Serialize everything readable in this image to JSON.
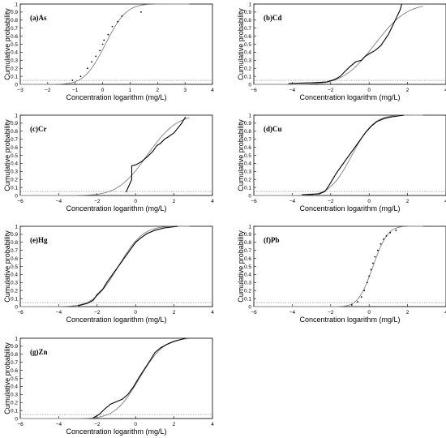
{
  "chart_data": [
    {
      "type": "line",
      "panel_label": "(a)As",
      "xlabel": "Concentration logarithm (mg/L)",
      "ylabel": "Cumulative probability",
      "xlim": [
        -3,
        4
      ],
      "ylim": [
        0,
        1
      ],
      "xticks": [
        -3,
        -2,
        -1,
        0,
        1,
        2,
        3,
        4
      ],
      "yticks": [
        0,
        0.1,
        0.2,
        0.3,
        0.4,
        0.5,
        0.6,
        0.7,
        0.8,
        0.9,
        1
      ],
      "reference_y": 0.05,
      "fitted_curve": {
        "mean": 0.1,
        "sd": 0.6
      },
      "empirical": {
        "style": "points",
        "x": [
          -1.1,
          -0.8,
          -0.55,
          -0.4,
          -0.25,
          -0.1,
          0.0,
          0.05,
          0.2,
          0.35,
          0.55,
          0.7,
          1.4
        ],
        "y": [
          0.05,
          0.1,
          0.2,
          0.28,
          0.35,
          0.42,
          0.5,
          0.55,
          0.62,
          0.72,
          0.78,
          0.85,
          0.9
        ]
      }
    },
    {
      "type": "line",
      "panel_label": "(b)Cd",
      "xlabel": "Concentration logarithm (mg/L)",
      "ylabel": "Cumulative probability",
      "xlim": [
        -6,
        4
      ],
      "ylim": [
        0,
        1
      ],
      "xticks": [
        -6,
        -4,
        -2,
        0,
        2,
        4
      ],
      "yticks": [
        0,
        0.1,
        0.2,
        0.3,
        0.4,
        0.5,
        0.6,
        0.7,
        0.8,
        0.9,
        1
      ],
      "reference_y": 0.05,
      "fitted_curve": {
        "mean": 0.3,
        "sd": 1.3
      },
      "empirical": {
        "style": "line",
        "x": [
          -4.2,
          -3.0,
          -2.2,
          -1.8,
          -1.5,
          -1.3,
          -1.0,
          -0.7,
          -0.4,
          -0.2,
          0.0,
          0.3,
          0.6,
          0.8,
          1.0,
          1.2,
          1.4,
          1.6,
          1.7
        ],
        "y": [
          0.01,
          0.02,
          0.03,
          0.06,
          0.1,
          0.15,
          0.22,
          0.28,
          0.3,
          0.35,
          0.38,
          0.42,
          0.48,
          0.55,
          0.62,
          0.72,
          0.82,
          0.92,
          1.0
        ]
      }
    },
    {
      "type": "line",
      "panel_label": "(c)Cr",
      "xlabel": "Concentration logarithm (mg/L)",
      "ylabel": "Cumulative probability",
      "xlim": [
        -6,
        4
      ],
      "ylim": [
        0,
        1
      ],
      "xticks": [
        -6,
        -4,
        -2,
        0,
        2,
        4
      ],
      "yticks": [
        0,
        0.1,
        0.2,
        0.3,
        0.4,
        0.5,
        0.6,
        0.7,
        0.8,
        0.9,
        1
      ],
      "reference_y": 0.05,
      "fitted_curve": {
        "mean": 0.6,
        "sd": 1.2
      },
      "empirical": {
        "style": "line",
        "x": [
          -0.5,
          -0.2,
          -0.2,
          0.0,
          0.3,
          0.6,
          0.9,
          1.1,
          1.3,
          1.5,
          1.7,
          2.0,
          2.2,
          2.4,
          2.6
        ],
        "y": [
          0.04,
          0.2,
          0.37,
          0.38,
          0.42,
          0.48,
          0.55,
          0.62,
          0.65,
          0.7,
          0.73,
          0.78,
          0.84,
          0.9,
          0.98
        ]
      }
    },
    {
      "type": "line",
      "panel_label": "(d)Cu",
      "xlabel": "Concentration logarithm (mg/L)",
      "ylabel": "Cumulative probability",
      "xlim": [
        -6,
        4
      ],
      "ylim": [
        0,
        1
      ],
      "xticks": [
        -6,
        -4,
        -2,
        0,
        2,
        4
      ],
      "yticks": [
        0,
        0.1,
        0.2,
        0.3,
        0.4,
        0.5,
        0.6,
        0.7,
        0.8,
        0.9,
        1
      ],
      "reference_y": 0.05,
      "fitted_curve": {
        "mean": -0.9,
        "sd": 0.9
      },
      "empirical": {
        "style": "line",
        "x": [
          -3.5,
          -2.6,
          -2.3,
          -2.1,
          -1.9,
          -1.7,
          -1.4,
          -1.1,
          -0.8,
          -0.5,
          -0.2,
          0.1,
          0.4,
          0.8,
          1.2,
          1.8
        ],
        "y": [
          0.01,
          0.02,
          0.05,
          0.12,
          0.2,
          0.28,
          0.38,
          0.48,
          0.58,
          0.68,
          0.78,
          0.86,
          0.92,
          0.96,
          0.98,
          1.0
        ]
      }
    },
    {
      "type": "line",
      "panel_label": "(e)Hg",
      "xlabel": "Concentration logarithm (mg/L)",
      "ylabel": "Cumulative probability",
      "xlim": [
        -6,
        4
      ],
      "ylim": [
        0,
        1
      ],
      "xticks": [
        -6,
        -4,
        -2,
        0,
        2,
        4
      ],
      "yticks": [
        0,
        0.1,
        0.2,
        0.3,
        0.4,
        0.5,
        0.6,
        0.7,
        0.8,
        0.9,
        1
      ],
      "reference_y": 0.05,
      "fitted_curve": {
        "mean": -0.9,
        "sd": 1.0
      },
      "empirical": {
        "style": "line",
        "x": [
          -3.0,
          -2.5,
          -2.2,
          -2.0,
          -1.7,
          -1.5,
          -1.2,
          -0.9,
          -0.6,
          -0.3,
          0.0,
          0.3,
          0.6,
          1.0,
          1.5,
          2.2
        ],
        "y": [
          0.01,
          0.04,
          0.08,
          0.15,
          0.22,
          0.3,
          0.4,
          0.5,
          0.6,
          0.7,
          0.8,
          0.86,
          0.91,
          0.95,
          0.98,
          1.0
        ]
      }
    },
    {
      "type": "scatter",
      "panel_label": "(f)Pb",
      "xlabel": "Concentration logarithm (mg/L)",
      "ylabel": "Cumulative probability",
      "xlim": [
        -6,
        4
      ],
      "ylim": [
        0,
        1
      ],
      "xticks": [
        -6,
        -4,
        -2,
        0,
        2,
        4
      ],
      "yticks": [
        0,
        0.1,
        0.2,
        0.3,
        0.4,
        0.5,
        0.6,
        0.7,
        0.8,
        0.9,
        1
      ],
      "reference_y": 0.05,
      "fitted_curve": {
        "mean": 0.2,
        "sd": 0.6
      },
      "empirical": {
        "style": "points",
        "x": [
          -0.9,
          -0.6,
          -0.4,
          -0.25,
          -0.1,
          0.0,
          0.1,
          0.2,
          0.3,
          0.45,
          0.6,
          0.75,
          0.9,
          1.1,
          1.4
        ],
        "y": [
          0.02,
          0.06,
          0.12,
          0.2,
          0.3,
          0.38,
          0.46,
          0.54,
          0.62,
          0.7,
          0.78,
          0.84,
          0.88,
          0.92,
          0.95
        ]
      }
    },
    {
      "type": "line",
      "panel_label": "(g)Zn",
      "xlabel": "Concentration logarithm (mg/L)",
      "ylabel": "Cumulative probability",
      "xlim": [
        -6,
        4
      ],
      "ylim": [
        0,
        1
      ],
      "xticks": [
        -6,
        -4,
        -2,
        0,
        2,
        4
      ],
      "yticks": [
        0,
        0.1,
        0.2,
        0.3,
        0.4,
        0.5,
        0.6,
        0.7,
        0.8,
        0.9,
        1
      ],
      "reference_y": 0.05,
      "fitted_curve": {
        "mean": 0.2,
        "sd": 1.0
      },
      "empirical": {
        "style": "line",
        "x": [
          -2.2,
          -1.9,
          -1.6,
          -1.3,
          -1.0,
          -0.7,
          -0.4,
          -0.1,
          0.2,
          0.5,
          0.8,
          1.0,
          1.3,
          1.6,
          2.0,
          2.6
        ],
        "y": [
          0.01,
          0.05,
          0.12,
          0.18,
          0.21,
          0.24,
          0.3,
          0.4,
          0.52,
          0.63,
          0.74,
          0.82,
          0.88,
          0.92,
          0.96,
          1.0
        ]
      }
    }
  ]
}
